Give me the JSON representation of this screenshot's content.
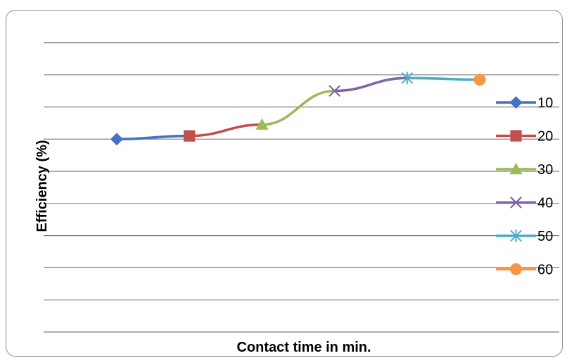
{
  "chart_data": {
    "type": "line",
    "title": "",
    "xlabel": "Contact time in min.",
    "ylabel": "Efficiency (%)",
    "ylim": [
      0,
      100
    ],
    "grid": true,
    "legend_position": "right",
    "x": [
      1,
      2,
      3,
      4,
      5,
      6
    ],
    "series": [
      {
        "name": "10",
        "color": "#4472C4",
        "marker": "diamond",
        "points": [
          [
            1,
            60
          ],
          [
            2,
            61
          ]
        ]
      },
      {
        "name": "20",
        "color": "#C0504D",
        "marker": "square",
        "points": [
          [
            2,
            61
          ],
          [
            3,
            64.5
          ]
        ]
      },
      {
        "name": "30",
        "color": "#9BBB59",
        "marker": "triangle",
        "points": [
          [
            3,
            64.5
          ],
          [
            4,
            75
          ]
        ]
      },
      {
        "name": "40",
        "color": "#8064A2",
        "marker": "x",
        "points": [
          [
            4,
            75
          ],
          [
            5,
            79
          ]
        ]
      },
      {
        "name": "50",
        "color": "#4BACC6",
        "marker": "star",
        "points": [
          [
            5,
            79
          ],
          [
            6,
            78.5
          ]
        ]
      },
      {
        "name": "60",
        "color": "#F79646",
        "marker": "circle",
        "points": [
          [
            6,
            78.5
          ]
        ]
      }
    ]
  }
}
